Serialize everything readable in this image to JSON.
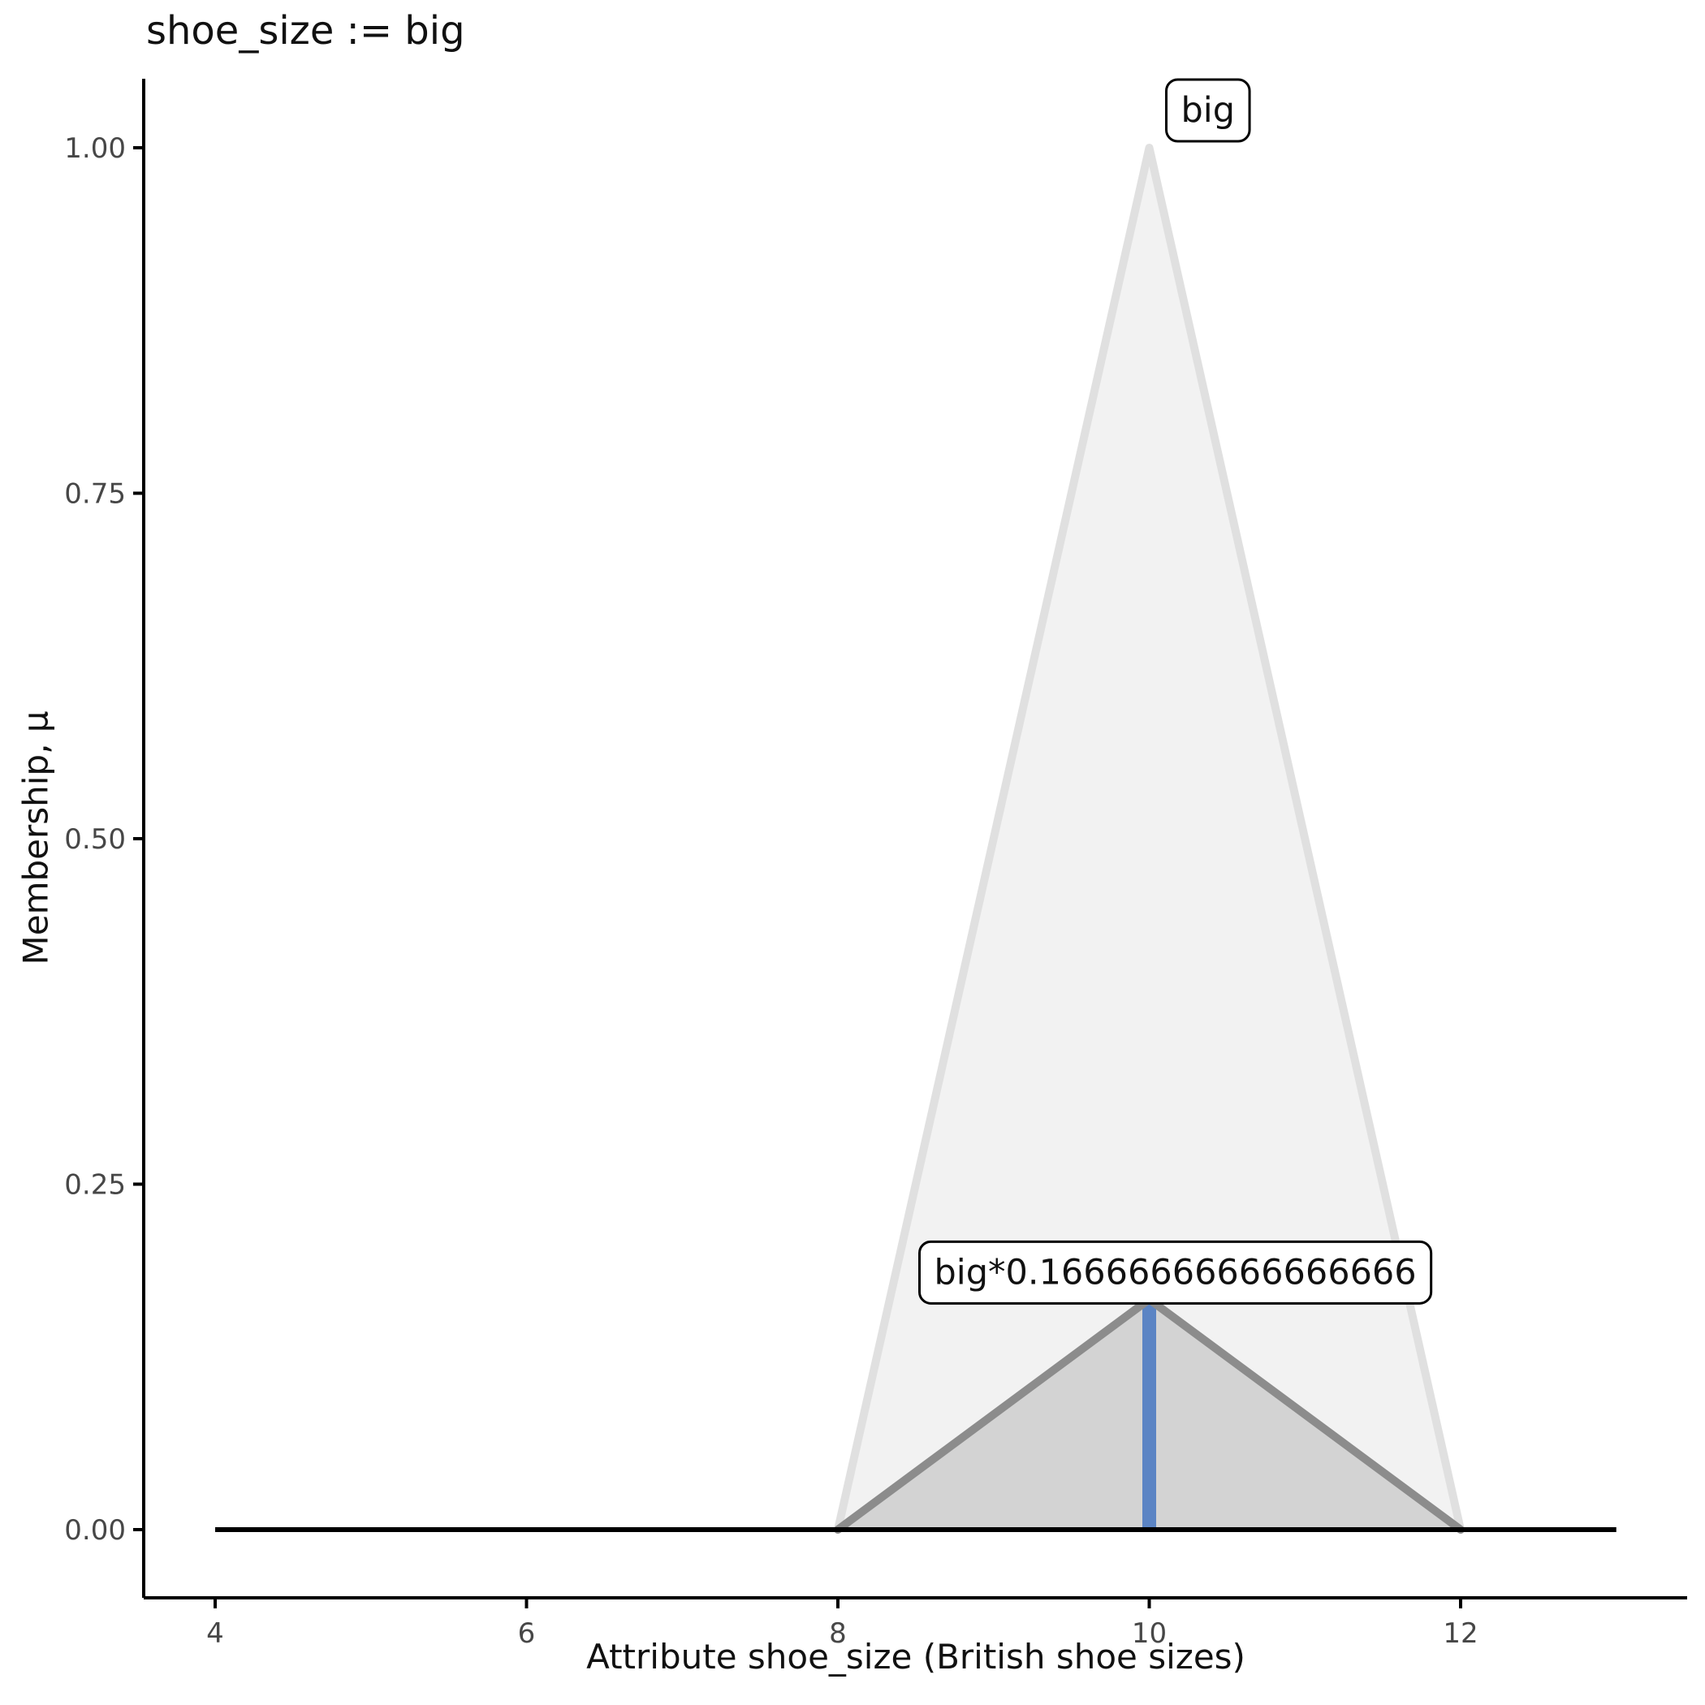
{
  "title": "shoe_size := big",
  "x_axis": {
    "label": "Attribute shoe_size (British shoe sizes)",
    "tick_labels": [
      "4",
      "6",
      "8",
      "10",
      "12"
    ],
    "tick_values": [
      4,
      6,
      8,
      10,
      12
    ]
  },
  "y_axis": {
    "label": "Membership, μ",
    "tick_labels": [
      "0.00",
      "0.25",
      "0.50",
      "0.75",
      "1.00"
    ],
    "tick_values": [
      0,
      0.25,
      0.5,
      0.75,
      1
    ]
  },
  "chart_data": {
    "type": "area",
    "title": "shoe_size := big",
    "xlabel": "Attribute shoe_size (British shoe sizes)",
    "ylabel": "Membership, μ",
    "xlim": [
      3.55,
      13.45
    ],
    "ylim": [
      -0.05,
      1.05
    ],
    "grid": false,
    "legend": "none",
    "series": [
      {
        "name": "big",
        "kind": "area",
        "points": [
          [
            8,
            0
          ],
          [
            10,
            1
          ],
          [
            12,
            0
          ]
        ],
        "fill": "#F2F2F2",
        "stroke": "#E0E0E0"
      },
      {
        "name": "big-scaled",
        "kind": "area",
        "points": [
          [
            8,
            0
          ],
          [
            10,
            0.16666666666666666
          ],
          [
            12,
            0
          ]
        ],
        "fill": "#D3D3D3",
        "stroke": "#8C8C8C"
      },
      {
        "name": "defuzzified-value-line",
        "kind": "line",
        "points": [
          [
            10,
            0
          ],
          [
            10,
            0.16666666666666666
          ]
        ],
        "stroke": "#5B84C4"
      },
      {
        "name": "zero-baseline",
        "kind": "line",
        "points": [
          [
            4,
            0
          ],
          [
            13,
            0
          ]
        ],
        "stroke": "#000000"
      }
    ],
    "annotations": [
      {
        "text": "big",
        "x": 10,
        "y": 1
      },
      {
        "text": "big*0.16666666666666666",
        "x": 10,
        "y": 0.16666666666666666
      }
    ]
  },
  "colors": {
    "axis": "#000000",
    "tick_label": "#474747",
    "big_fill": "#F2F2F2",
    "big_stroke": "#E0E0E0",
    "scaled_fill": "#D3D3D3",
    "scaled_stroke": "#8C8C8C",
    "defuzz_blue": "#5B84C4",
    "annotation_border": "#000000",
    "annotation_bg": "#FFFFFF"
  }
}
